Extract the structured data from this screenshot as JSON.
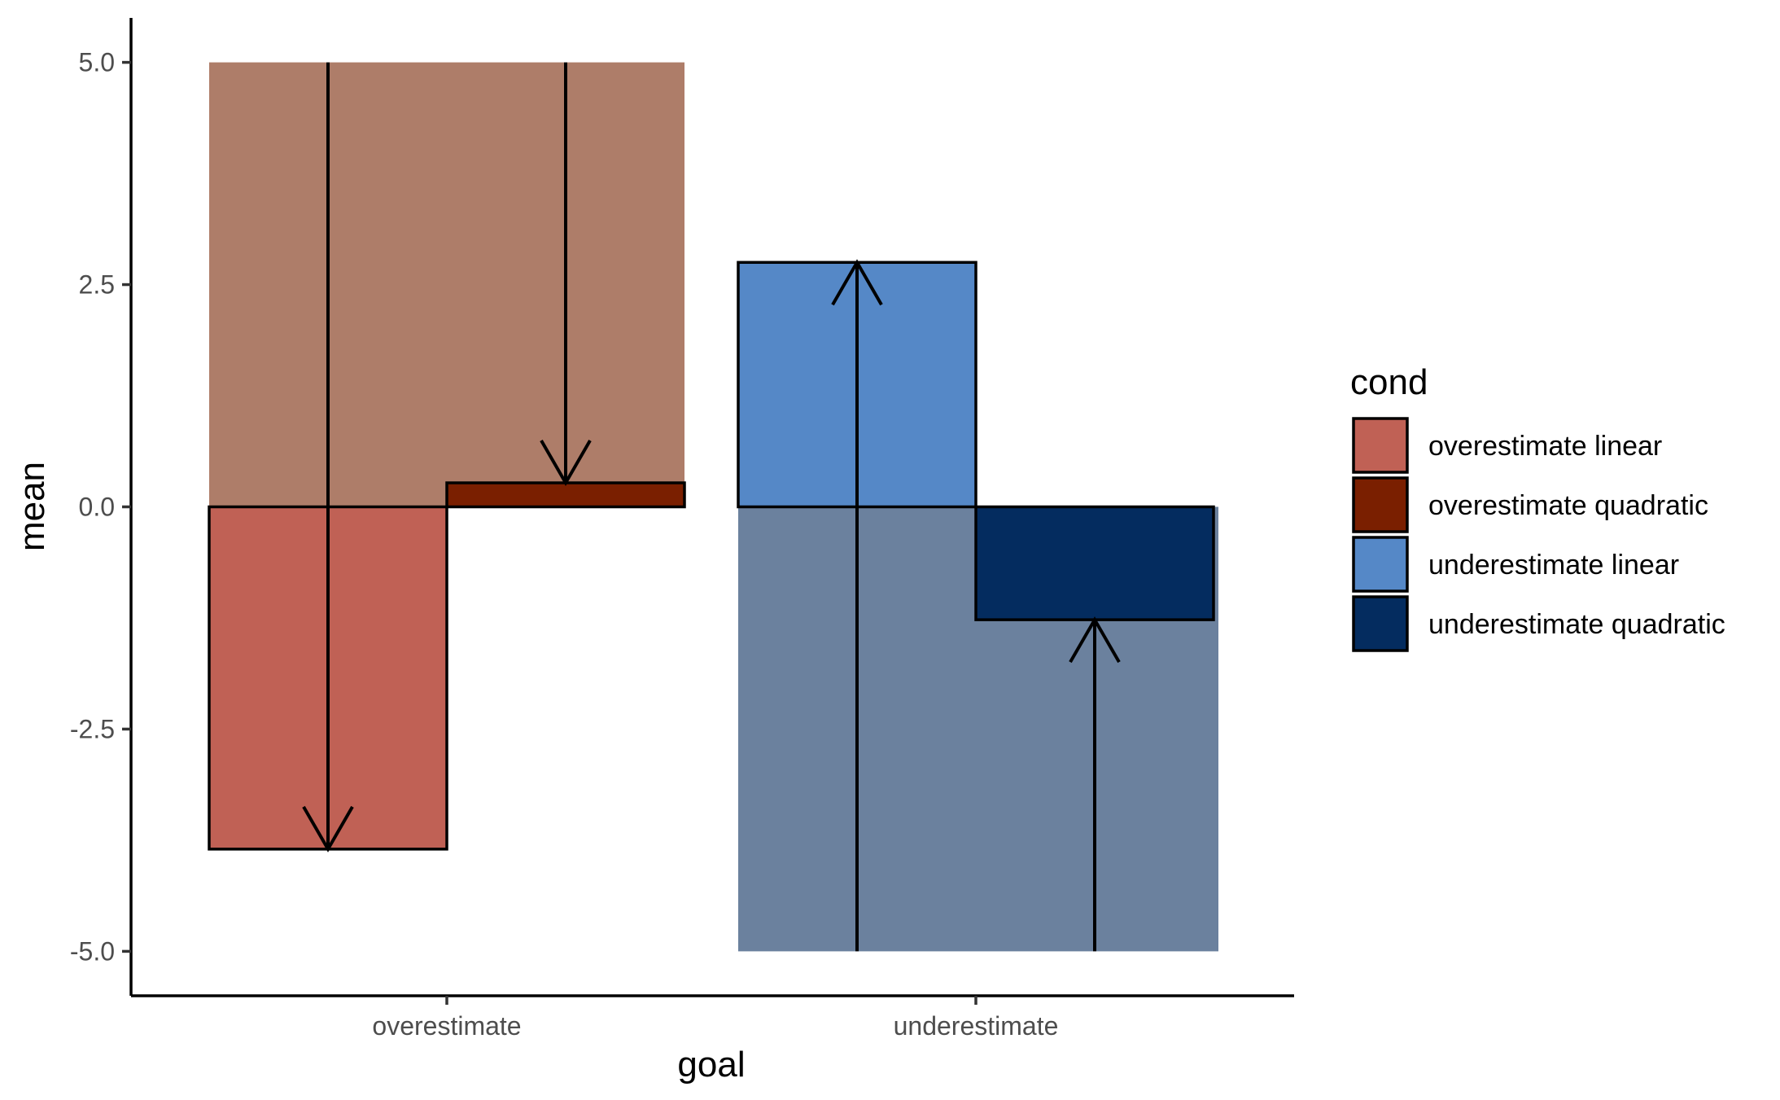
{
  "chart_data": {
    "type": "bar",
    "xlabel": "goal",
    "ylabel": "mean",
    "ylim": [
      -5.5,
      5.5
    ],
    "y_ticks": [
      5.0,
      2.5,
      0.0,
      -2.5,
      -5.0
    ],
    "y_tick_labels": [
      "5.0",
      "2.5",
      "0.0",
      "-2.5",
      "-5.0"
    ],
    "categories": [
      "overestimate",
      "underestimate"
    ],
    "legend": {
      "title": "cond",
      "position": "right",
      "entries": [
        {
          "label": "overestimate linear",
          "color": "#C06155"
        },
        {
          "label": "overestimate quadratic",
          "color": "#7A1F00"
        },
        {
          "label": "underestimate linear",
          "color": "#5588C7"
        },
        {
          "label": "underestimate quadratic",
          "color": "#042C5F"
        }
      ]
    },
    "background_bands": [
      {
        "category": "overestimate",
        "from": 0,
        "to": 5,
        "color": "#AE7D69"
      },
      {
        "category": "underestimate",
        "from": 0,
        "to": -5,
        "color": "#6B819E"
      }
    ],
    "bars": [
      {
        "category": "overestimate",
        "series": "overestimate linear",
        "value": -3.85,
        "color": "#C06155"
      },
      {
        "category": "overestimate",
        "series": "overestimate quadratic",
        "value": 0.27,
        "color": "#7A1F00"
      },
      {
        "category": "underestimate",
        "series": "underestimate linear",
        "value": 2.75,
        "color": "#5588C7"
      },
      {
        "category": "underestimate",
        "series": "underestimate quadratic",
        "value": -1.27,
        "color": "#042C5F"
      }
    ],
    "arrows": [
      {
        "series": "overestimate linear",
        "from": 5,
        "to": -3.85
      },
      {
        "series": "overestimate quadratic",
        "from": 5,
        "to": 0.27
      },
      {
        "series": "underestimate linear",
        "from": -5,
        "to": 2.75
      },
      {
        "series": "underestimate quadratic",
        "from": -5,
        "to": -1.27
      }
    ],
    "grid": false
  }
}
